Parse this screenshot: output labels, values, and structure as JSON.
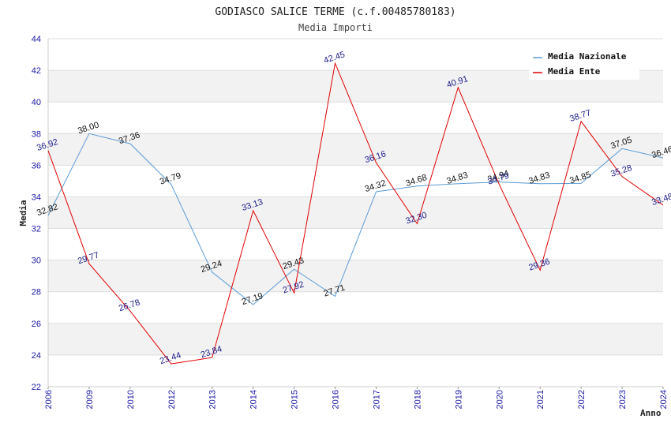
{
  "chart_data": {
    "type": "line",
    "title": "GODIASCO SALICE TERME (c.f.00485780183)",
    "subtitle": "Media Importi",
    "xlabel": "Anno",
    "ylabel": "Media",
    "ylim": [
      22,
      44
    ],
    "yticks": [
      22,
      24,
      26,
      28,
      30,
      32,
      34,
      36,
      38,
      40,
      42,
      44
    ],
    "categories": [
      "2006",
      "2009",
      "2010",
      "2012",
      "2013",
      "2014",
      "2015",
      "2016",
      "2017",
      "2018",
      "2019",
      "2020",
      "2021",
      "2022",
      "2023",
      "2024"
    ],
    "series": [
      {
        "name": "Media Nazionale",
        "color": "#5b9bd5",
        "values": [
          32.82,
          38.0,
          37.36,
          34.79,
          29.24,
          27.19,
          29.43,
          27.71,
          34.32,
          34.68,
          34.83,
          34.94,
          34.83,
          34.85,
          37.05,
          36.46
        ],
        "labels": [
          "32.82",
          "38.00",
          "37.36",
          "34.79",
          "29.24",
          "27.19",
          "29.43",
          "27.71",
          "34.32",
          "34.68",
          "34.83",
          "34.94",
          "34.83",
          "34.85",
          "37.05",
          "36.46"
        ]
      },
      {
        "name": "Media Ente",
        "color": "#e00000",
        "values": [
          36.92,
          29.77,
          26.78,
          23.44,
          23.84,
          33.13,
          27.92,
          42.45,
          36.16,
          32.3,
          40.91,
          34.79,
          29.36,
          38.77,
          35.28,
          33.48
        ],
        "labels": [
          "36.92",
          "29.77",
          "26.78",
          "23.44",
          "23.84",
          "33.13",
          "27.92",
          "42.45",
          "36.16",
          "32.30",
          "40.91",
          "34.79",
          "29.36",
          "38.77",
          "35.28",
          "33.48"
        ]
      }
    ],
    "legend_position": "top-right",
    "grid": true,
    "band_color": "#f2f2f2",
    "grid_color": "#dddddd"
  }
}
